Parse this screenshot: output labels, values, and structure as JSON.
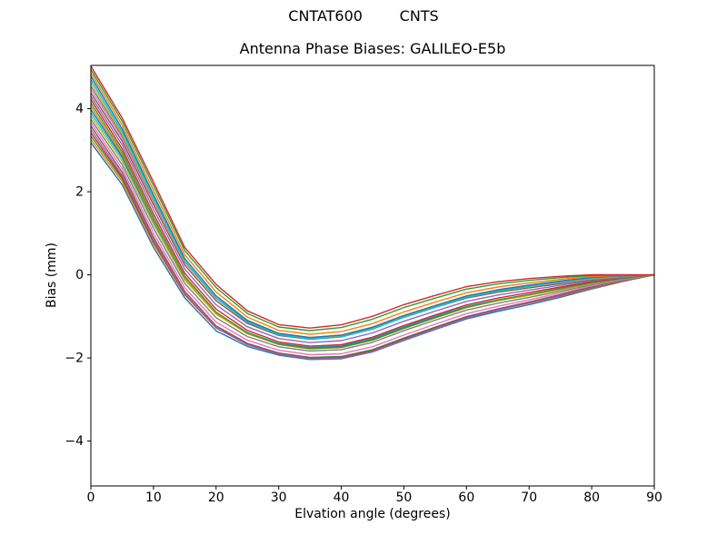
{
  "figure": {
    "suptitle": "CNTAT600        CNTS",
    "background_color": "#ffffff",
    "text_color": "#000000"
  },
  "chart_data": {
    "type": "line",
    "title": "Antenna Phase Biases: GALILEO-E5b",
    "xlabel": "Elvation angle (degrees)",
    "ylabel": "Bias (mm)",
    "xlim": [
      0,
      90
    ],
    "ylim": [
      -5.08,
      5.04
    ],
    "xticks": [
      0,
      10,
      20,
      30,
      40,
      50,
      60,
      70,
      80,
      90
    ],
    "xtick_labels": [
      "0",
      "10",
      "20",
      "30",
      "40",
      "50",
      "60",
      "70",
      "80",
      "90"
    ],
    "yticks": [
      -4,
      -2,
      0,
      2,
      4
    ],
    "ytick_labels": [
      "−4",
      "−2",
      "0",
      "2",
      "4"
    ],
    "grid": false,
    "legend": false,
    "axis_color": "#000000",
    "x": [
      0,
      5,
      10,
      15,
      20,
      25,
      30,
      35,
      40,
      45,
      50,
      55,
      60,
      65,
      70,
      75,
      80,
      85,
      90
    ],
    "envelope": {
      "upper": [
        5.02,
        3.75,
        2.18,
        0.6,
        -0.3,
        -0.93,
        -1.26,
        -1.35,
        -1.28,
        -1.08,
        -0.8,
        -0.57,
        -0.35,
        -0.22,
        -0.13,
        -0.06,
        -0.01,
        0.0,
        0.0
      ],
      "lower": [
        3.18,
        2.15,
        0.62,
        -0.6,
        -1.4,
        -1.77,
        -1.98,
        -2.09,
        -2.08,
        -1.92,
        -1.64,
        -1.37,
        -1.11,
        -0.92,
        -0.75,
        -0.56,
        -0.35,
        -0.16,
        0.0
      ]
    },
    "series_model": {
      "description": "Bundle of per-satellite phase-bias curves spanning the envelope; every curve converges to 0 mm at 90 degrees elevation. value_i(x) = center(x) + offset_i * half_width(x)",
      "center": [
        4.1,
        2.95,
        1.4,
        0.0,
        -0.85,
        -1.35,
        -1.62,
        -1.72,
        -1.68,
        -1.5,
        -1.22,
        -0.97,
        -0.73,
        -0.57,
        -0.44,
        -0.31,
        -0.18,
        -0.08,
        0.0
      ],
      "half_width": [
        0.92,
        0.8,
        0.78,
        0.6,
        0.55,
        0.42,
        0.36,
        0.37,
        0.4,
        0.42,
        0.42,
        0.4,
        0.38,
        0.35,
        0.31,
        0.25,
        0.17,
        0.08,
        0.0
      ],
      "n_lines": 24
    },
    "line_width": 1.4,
    "colors": [
      "#1f77b4",
      "#ff7f0e",
      "#2ca02c",
      "#d62728",
      "#9467bd",
      "#8c564b",
      "#e377c2",
      "#7f7f7f",
      "#bcbd22",
      "#17becf"
    ]
  }
}
